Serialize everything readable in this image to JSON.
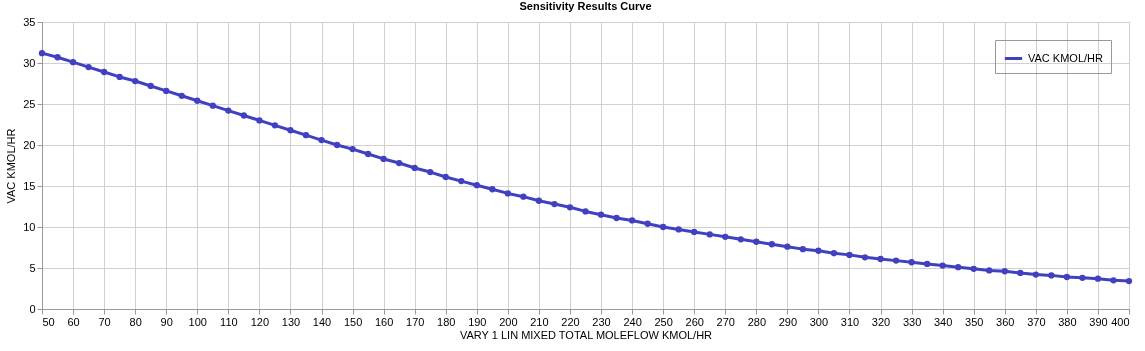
{
  "chart_data": {
    "type": "line",
    "title": "Sensitivity Results Curve",
    "xlabel": "VARY   1 LIN MIXED TOTAL MOLEFLOW KMOL/HR",
    "ylabel": "VAC KMOL/HR",
    "x": [
      50,
      55,
      60,
      65,
      70,
      75,
      80,
      85,
      90,
      95,
      100,
      105,
      110,
      115,
      120,
      125,
      130,
      135,
      140,
      145,
      150,
      155,
      160,
      165,
      170,
      175,
      180,
      185,
      190,
      195,
      200,
      205,
      210,
      215,
      220,
      225,
      230,
      235,
      240,
      245,
      250,
      255,
      260,
      265,
      270,
      275,
      280,
      285,
      290,
      295,
      300,
      305,
      310,
      315,
      320,
      325,
      330,
      335,
      340,
      345,
      350,
      355,
      360,
      365,
      370,
      375,
      380,
      385,
      390,
      395,
      400
    ],
    "series": [
      {
        "name": "VAC KMOL/HR",
        "color": "#4040c0",
        "values": [
          31.2,
          30.7,
          30.1,
          29.5,
          28.9,
          28.3,
          27.8,
          27.2,
          26.6,
          26.0,
          25.4,
          24.8,
          24.2,
          23.6,
          23.0,
          22.4,
          21.8,
          21.2,
          20.6,
          20.0,
          19.5,
          18.9,
          18.3,
          17.8,
          17.2,
          16.7,
          16.1,
          15.6,
          15.1,
          14.6,
          14.1,
          13.7,
          13.2,
          12.8,
          12.4,
          11.9,
          11.5,
          11.1,
          10.8,
          10.4,
          10.0,
          9.7,
          9.4,
          9.1,
          8.8,
          8.5,
          8.2,
          7.9,
          7.6,
          7.3,
          7.1,
          6.8,
          6.6,
          6.3,
          6.1,
          5.9,
          5.7,
          5.5,
          5.3,
          5.1,
          4.9,
          4.7,
          4.6,
          4.4,
          4.2,
          4.1,
          3.9,
          3.8,
          3.7,
          3.5,
          3.4
        ]
      }
    ],
    "xlim": [
      50,
      400
    ],
    "xticks": [
      50,
      60,
      70,
      80,
      90,
      100,
      110,
      120,
      130,
      140,
      150,
      160,
      170,
      180,
      190,
      200,
      210,
      220,
      230,
      240,
      250,
      260,
      270,
      280,
      290,
      300,
      310,
      320,
      330,
      340,
      350,
      360,
      370,
      380,
      390,
      400
    ],
    "ylim": [
      0,
      35
    ],
    "yticks": [
      0,
      5,
      10,
      15,
      20,
      25,
      30,
      35
    ],
    "grid": true,
    "legend": "top right",
    "marker": "circle",
    "line_style": "solid"
  }
}
